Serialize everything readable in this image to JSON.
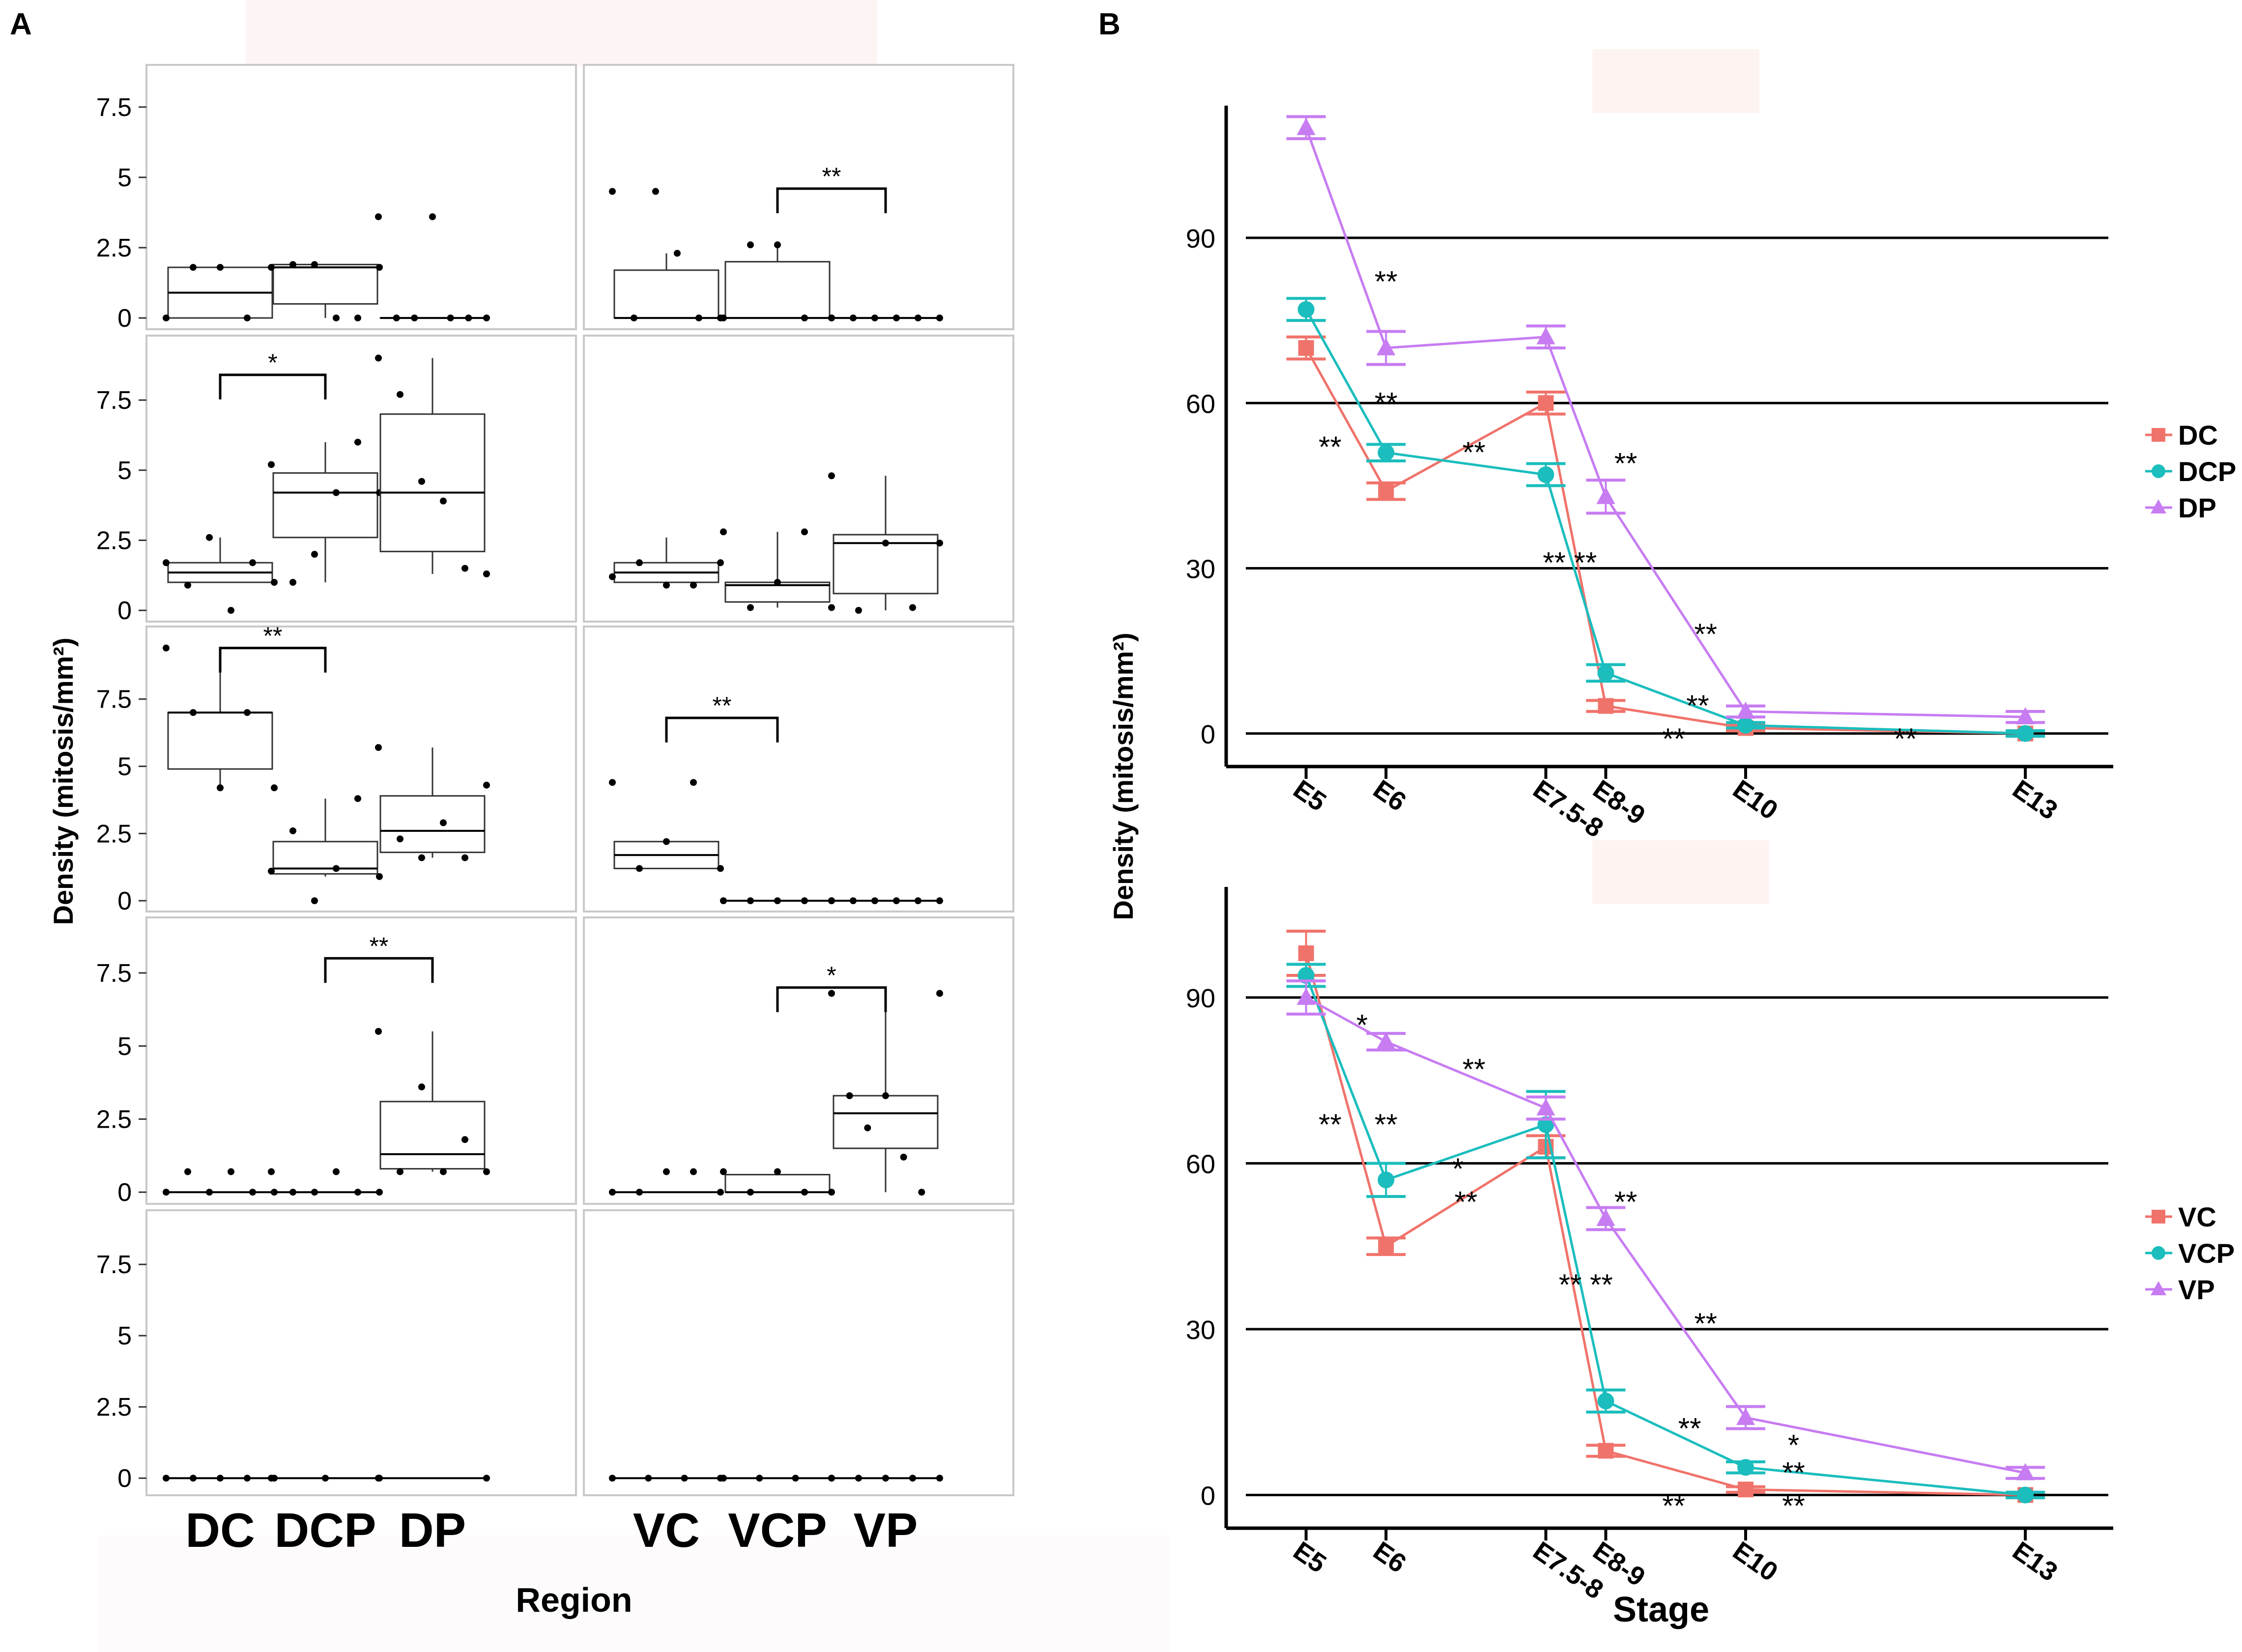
{
  "figure": {
    "panel_a_label": "A",
    "panel_b_label": "B"
  },
  "colors": {
    "c1": "#f0736b",
    "c2": "#1bbdbd",
    "c3": "#c77cf2",
    "box_stroke": "#333333",
    "grid": "#000000"
  },
  "chart_data": [
    {
      "type": "box",
      "panel": "A",
      "title": "",
      "xlabel": "Region",
      "ylabel": "Density (mitosis/mm²)",
      "categories_left": [
        "DC",
        "DCP",
        "DP"
      ],
      "categories_right": [
        "VC",
        "VCP",
        "VP"
      ],
      "ytick_labels": [
        "0",
        "2.5",
        "5",
        "7.5"
      ],
      "yticks": [
        0,
        2.5,
        5,
        7.5
      ],
      "rows": [
        {
          "ylim": [
            -0.4,
            9.0
          ],
          "left": [
            {
              "q1": 0,
              "median": 0.9,
              "q3": 1.8,
              "whisk_lo": 0,
              "whisk_hi": 1.8,
              "points": [
                0,
                1.8,
                1.8,
                0,
                1.8
              ]
            },
            {
              "q1": 0.5,
              "median": 1.8,
              "q3": 1.9,
              "whisk_lo": 0,
              "whisk_hi": 1.9,
              "points": [
                1.8,
                1.9,
                1.9,
                0,
                0,
                1.8
              ]
            },
            {
              "q1": 0,
              "median": 0,
              "q3": 0,
              "whisk_lo": 0,
              "whisk_hi": 0,
              "points": [
                3.6,
                0,
                0,
                3.6,
                0,
                0,
                0
              ]
            }
          ],
          "right": [
            {
              "q1": 0,
              "median": 0,
              "q3": 1.7,
              "whisk_lo": 0,
              "whisk_hi": 2.3,
              "points": [
                4.5,
                0,
                4.5,
                2.3,
                0,
                0
              ]
            },
            {
              "q1": 0,
              "median": 0,
              "q3": 2.0,
              "whisk_lo": 0,
              "whisk_hi": 2.6,
              "points": [
                0,
                2.6,
                2.6,
                0,
                0
              ]
            },
            {
              "q1": 0,
              "median": 0,
              "q3": 0,
              "whisk_lo": 0,
              "whisk_hi": 0,
              "points": [
                0,
                0,
                0,
                0,
                0,
                0
              ]
            }
          ],
          "brackets": [
            {
              "side": "right",
              "from": 1,
              "to": 2,
              "y": 4.6,
              "label": "**"
            }
          ]
        },
        {
          "ylim": [
            -0.4,
            9.8
          ],
          "left": [
            {
              "q1": 1.0,
              "median": 1.35,
              "q3": 1.7,
              "whisk_lo": 1.0,
              "whisk_hi": 2.6,
              "points": [
                1.7,
                0.9,
                2.6,
                0,
                1.7,
                1.0
              ]
            },
            {
              "q1": 2.6,
              "median": 4.2,
              "q3": 4.9,
              "whisk_lo": 1.0,
              "whisk_hi": 6.0,
              "points": [
                5.2,
                1.0,
                2.0,
                4.2,
                6.0,
                4.2
              ]
            },
            {
              "q1": 2.1,
              "median": 4.2,
              "q3": 7.0,
              "whisk_lo": 1.3,
              "whisk_hi": 9.0,
              "points": [
                9.0,
                7.7,
                4.6,
                3.9,
                1.5,
                1.3
              ]
            }
          ],
          "right": [
            {
              "q1": 1.0,
              "median": 1.35,
              "q3": 1.7,
              "whisk_lo": 0.9,
              "whisk_hi": 2.6,
              "points": [
                1.2,
                1.7,
                0.9,
                0.9,
                1.7
              ]
            },
            {
              "q1": 0.3,
              "median": 0.9,
              "q3": 1.0,
              "whisk_lo": 0.1,
              "whisk_hi": 2.8,
              "points": [
                2.8,
                0.1,
                1.0,
                2.8,
                0.1
              ]
            },
            {
              "q1": 0.6,
              "median": 2.4,
              "q3": 2.7,
              "whisk_lo": 0,
              "whisk_hi": 4.8,
              "points": [
                4.8,
                0,
                2.4,
                0.1,
                2.4
              ]
            }
          ],
          "brackets": [
            {
              "side": "left",
              "from": 0,
              "to": 1,
              "y": 8.4,
              "label": "*"
            }
          ]
        },
        {
          "ylim": [
            -0.4,
            10.2
          ],
          "left": [
            {
              "q1": 4.9,
              "median": 7.0,
              "q3": 7.0,
              "whisk_lo": 4.2,
              "whisk_hi": 9.4,
              "points": [
                9.4,
                7.0,
                4.2,
                7.0,
                4.2
              ]
            },
            {
              "q1": 1.0,
              "median": 1.2,
              "q3": 2.2,
              "whisk_lo": 0.9,
              "whisk_hi": 3.8,
              "points": [
                1.1,
                2.6,
                0,
                1.2,
                3.8,
                0.9
              ]
            },
            {
              "q1": 1.8,
              "median": 2.6,
              "q3": 3.9,
              "whisk_lo": 1.6,
              "whisk_hi": 5.7,
              "points": [
                5.7,
                2.3,
                1.6,
                2.9,
                1.6,
                4.3
              ]
            }
          ],
          "right": [
            {
              "q1": 1.2,
              "median": 1.7,
              "q3": 2.2,
              "whisk_lo": 1.2,
              "whisk_hi": 2.2,
              "points": [
                4.4,
                1.2,
                2.2,
                4.4,
                1.2
              ]
            },
            {
              "q1": 0,
              "median": 0,
              "q3": 0,
              "whisk_lo": 0,
              "whisk_hi": 0,
              "points": [
                0,
                0,
                0,
                0,
                0
              ]
            },
            {
              "q1": 0,
              "median": 0,
              "q3": 0,
              "whisk_lo": 0,
              "whisk_hi": 0,
              "points": [
                0,
                0,
                0,
                0,
                0,
                0
              ]
            }
          ],
          "brackets": [
            {
              "side": "left",
              "from": 0,
              "to": 1,
              "y": 9.4,
              "label": "**"
            },
            {
              "side": "right",
              "from": 0,
              "to": 1,
              "y": 6.8,
              "label": "**"
            }
          ]
        },
        {
          "ylim": [
            -0.4,
            9.4
          ],
          "left": [
            {
              "q1": 0,
              "median": 0,
              "q3": 0,
              "whisk_lo": 0,
              "whisk_hi": 0,
              "points": [
                0,
                0.7,
                0,
                0.7,
                0,
                0
              ]
            },
            {
              "q1": 0,
              "median": 0,
              "q3": 0,
              "whisk_lo": 0,
              "whisk_hi": 0,
              "points": [
                0.7,
                0,
                0,
                0.7,
                0,
                0
              ]
            },
            {
              "q1": 0.8,
              "median": 1.3,
              "q3": 3.1,
              "whisk_lo": 0.7,
              "whisk_hi": 5.5,
              "points": [
                5.5,
                0.7,
                3.6,
                0.7,
                1.8,
                0.7
              ]
            }
          ],
          "right": [
            {
              "q1": 0,
              "median": 0,
              "q3": 0,
              "whisk_lo": 0,
              "whisk_hi": 0,
              "points": [
                0,
                0,
                0.7,
                0.7,
                0
              ]
            },
            {
              "q1": 0,
              "median": 0,
              "q3": 0.6,
              "whisk_lo": 0,
              "whisk_hi": 0.7,
              "points": [
                0.7,
                0,
                0.7,
                0,
                0
              ]
            },
            {
              "q1": 1.5,
              "median": 2.7,
              "q3": 3.3,
              "whisk_lo": 0,
              "whisk_hi": 6.8,
              "points": [
                6.8,
                3.3,
                2.2,
                3.3,
                1.2,
                0,
                6.8
              ]
            }
          ],
          "brackets": [
            {
              "side": "left",
              "from": 1,
              "to": 2,
              "y": 8.0,
              "label": "**"
            },
            {
              "side": "right",
              "from": 1,
              "to": 2,
              "y": 7.0,
              "label": "*"
            }
          ]
        },
        {
          "ylim": [
            -0.6,
            9.4
          ],
          "left": [
            {
              "q1": 0,
              "median": 0,
              "q3": 0,
              "whisk_lo": 0,
              "whisk_hi": 0,
              "points": [
                0,
                0,
                0,
                0,
                0
              ]
            },
            {
              "q1": 0,
              "median": 0,
              "q3": 0,
              "whisk_lo": 0,
              "whisk_hi": 0,
              "points": [
                0,
                0,
                0
              ]
            },
            {
              "q1": 0,
              "median": 0,
              "q3": 0,
              "whisk_lo": 0,
              "whisk_hi": 0,
              "points": [
                0,
                0
              ]
            }
          ],
          "right": [
            {
              "q1": 0,
              "median": 0,
              "q3": 0,
              "whisk_lo": 0,
              "whisk_hi": 0,
              "points": [
                0,
                0,
                0,
                0
              ]
            },
            {
              "q1": 0,
              "median": 0,
              "q3": 0,
              "whisk_lo": 0,
              "whisk_hi": 0,
              "points": [
                0,
                0,
                0,
                0
              ]
            },
            {
              "q1": 0,
              "median": 0,
              "q3": 0,
              "whisk_lo": 0,
              "whisk_hi": 0,
              "points": [
                0,
                0,
                0,
                0,
                0
              ]
            }
          ],
          "brackets": []
        }
      ]
    },
    {
      "type": "line",
      "panel": "B-top",
      "title": "",
      "xlabel": "",
      "ylabel": "Density (mitosis/mm²)",
      "x_positions": [
        5,
        6,
        8,
        8.75,
        10.5,
        14
      ],
      "xtick_labels": [
        "E5",
        "E6",
        "E7.5-8",
        "E8-9",
        "E10",
        "E13"
      ],
      "xlim": [
        4,
        15.1
      ],
      "ylim": [
        -6,
        114
      ],
      "yticks": [
        0,
        30,
        60,
        90
      ],
      "ytick_labels": [
        "0",
        "30",
        "60",
        "90"
      ],
      "grid_y": [
        0,
        30,
        60,
        90
      ],
      "series": [
        {
          "name": "DC",
          "values": [
            70,
            44,
            60,
            5,
            1,
            0
          ],
          "errors": [
            2,
            1.5,
            2,
            1,
            0.5,
            0.5
          ]
        },
        {
          "name": "DCP",
          "values": [
            77,
            51,
            47,
            11,
            1.5,
            0
          ],
          "errors": [
            2,
            1.5,
            2,
            1.5,
            0.5,
            0.5
          ]
        },
        {
          "name": "DP",
          "values": [
            110,
            70,
            72,
            43,
            4,
            3
          ],
          "errors": [
            2,
            3,
            2,
            3,
            1,
            1
          ]
        }
      ],
      "annotations": [
        {
          "x": 6.0,
          "y": 82,
          "text": "**"
        },
        {
          "x": 6.0,
          "y": 60,
          "text": "**"
        },
        {
          "x": 5.3,
          "y": 52,
          "text": "**"
        },
        {
          "x": 7.1,
          "y": 51,
          "text": "**"
        },
        {
          "x": 9.0,
          "y": 49,
          "text": "**"
        },
        {
          "x": 8.3,
          "y": 31,
          "text": "** **"
        },
        {
          "x": 10.0,
          "y": 18,
          "text": "**"
        },
        {
          "x": 9.9,
          "y": 5,
          "text": "**"
        },
        {
          "x": 9.6,
          "y": -1,
          "text": "**"
        },
        {
          "x": 12.5,
          "y": -1,
          "text": "**"
        }
      ]
    },
    {
      "type": "line",
      "panel": "B-bottom",
      "title": "",
      "xlabel": "Stage",
      "ylabel": "",
      "x_positions": [
        5,
        6,
        8,
        8.75,
        10.5,
        14
      ],
      "xtick_labels": [
        "E5",
        "E6",
        "E7.5-8",
        "E8-9",
        "E10",
        "E13"
      ],
      "xlim": [
        4,
        15.1
      ],
      "ylim": [
        -6,
        110
      ],
      "yticks": [
        0,
        30,
        60,
        90
      ],
      "ytick_labels": [
        "0",
        "30",
        "60",
        "90"
      ],
      "grid_y": [
        0,
        30,
        60,
        90
      ],
      "series": [
        {
          "name": "VC",
          "values": [
            98,
            45,
            63,
            8,
            1,
            0
          ],
          "errors": [
            4,
            1.5,
            2,
            1,
            0.5,
            0.5
          ]
        },
        {
          "name": "VCP",
          "values": [
            94,
            57,
            67,
            17,
            5,
            0
          ],
          "errors": [
            2,
            3,
            6,
            2,
            1,
            0.5
          ]
        },
        {
          "name": "VP",
          "values": [
            90,
            82,
            70,
            50,
            14,
            4
          ],
          "errors": [
            3,
            1.5,
            2,
            2,
            2,
            1
          ]
        }
      ],
      "annotations": [
        {
          "x": 5.7,
          "y": 85,
          "text": "*"
        },
        {
          "x": 7.1,
          "y": 77,
          "text": "**"
        },
        {
          "x": 5.3,
          "y": 67,
          "text": "**"
        },
        {
          "x": 6.0,
          "y": 67,
          "text": "**"
        },
        {
          "x": 6.9,
          "y": 59,
          "text": "*"
        },
        {
          "x": 7.0,
          "y": 53,
          "text": "**"
        },
        {
          "x": 9.0,
          "y": 53,
          "text": "**"
        },
        {
          "x": 8.5,
          "y": 38,
          "text": "** **"
        },
        {
          "x": 10.0,
          "y": 31,
          "text": "**"
        },
        {
          "x": 9.8,
          "y": 12,
          "text": "**"
        },
        {
          "x": 11.1,
          "y": 9,
          "text": "*"
        },
        {
          "x": 11.1,
          "y": 4,
          "text": "**"
        },
        {
          "x": 9.6,
          "y": -2,
          "text": "**"
        },
        {
          "x": 11.1,
          "y": -2,
          "text": "**"
        }
      ]
    }
  ],
  "legends": {
    "top": [
      "DC",
      "DCP",
      "DP"
    ],
    "bottom": [
      "VC",
      "VCP",
      "VP"
    ]
  }
}
